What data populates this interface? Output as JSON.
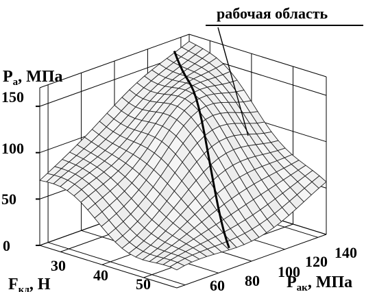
{
  "chart_data": {
    "type": "surface3d",
    "annotation": "рабочая область",
    "zlabel": {
      "main": "P",
      "sub": "a",
      "rest": ", МПа"
    },
    "xlabel": {
      "main": "F",
      "sub": "кд",
      "rest": ", Н"
    },
    "ylabel": {
      "main": "P",
      "sub": "ак",
      "rest": ", МПа"
    },
    "z_ticks": [
      "0",
      "50",
      "100",
      "150"
    ],
    "x_ticks": [
      "30",
      "40",
      "50"
    ],
    "y_ticks": [
      "60",
      "80",
      "100",
      "120",
      "140"
    ],
    "zlim": [
      0,
      170
    ],
    "xlim": [
      25,
      58
    ],
    "ylim": [
      55,
      145
    ],
    "grid": true,
    "surface": {
      "grid_size": 20,
      "F_range": [
        25,
        58
      ],
      "P_ak_range": [
        55,
        145
      ],
      "description_values": {
        "peak_P_a": 165,
        "corner_low_F_low_Pak": 70,
        "corner_high_F_low_Pak": 10,
        "corner_low_F_high_Pak": 160,
        "corner_high_F_high_Pak": 50
      }
    }
  }
}
